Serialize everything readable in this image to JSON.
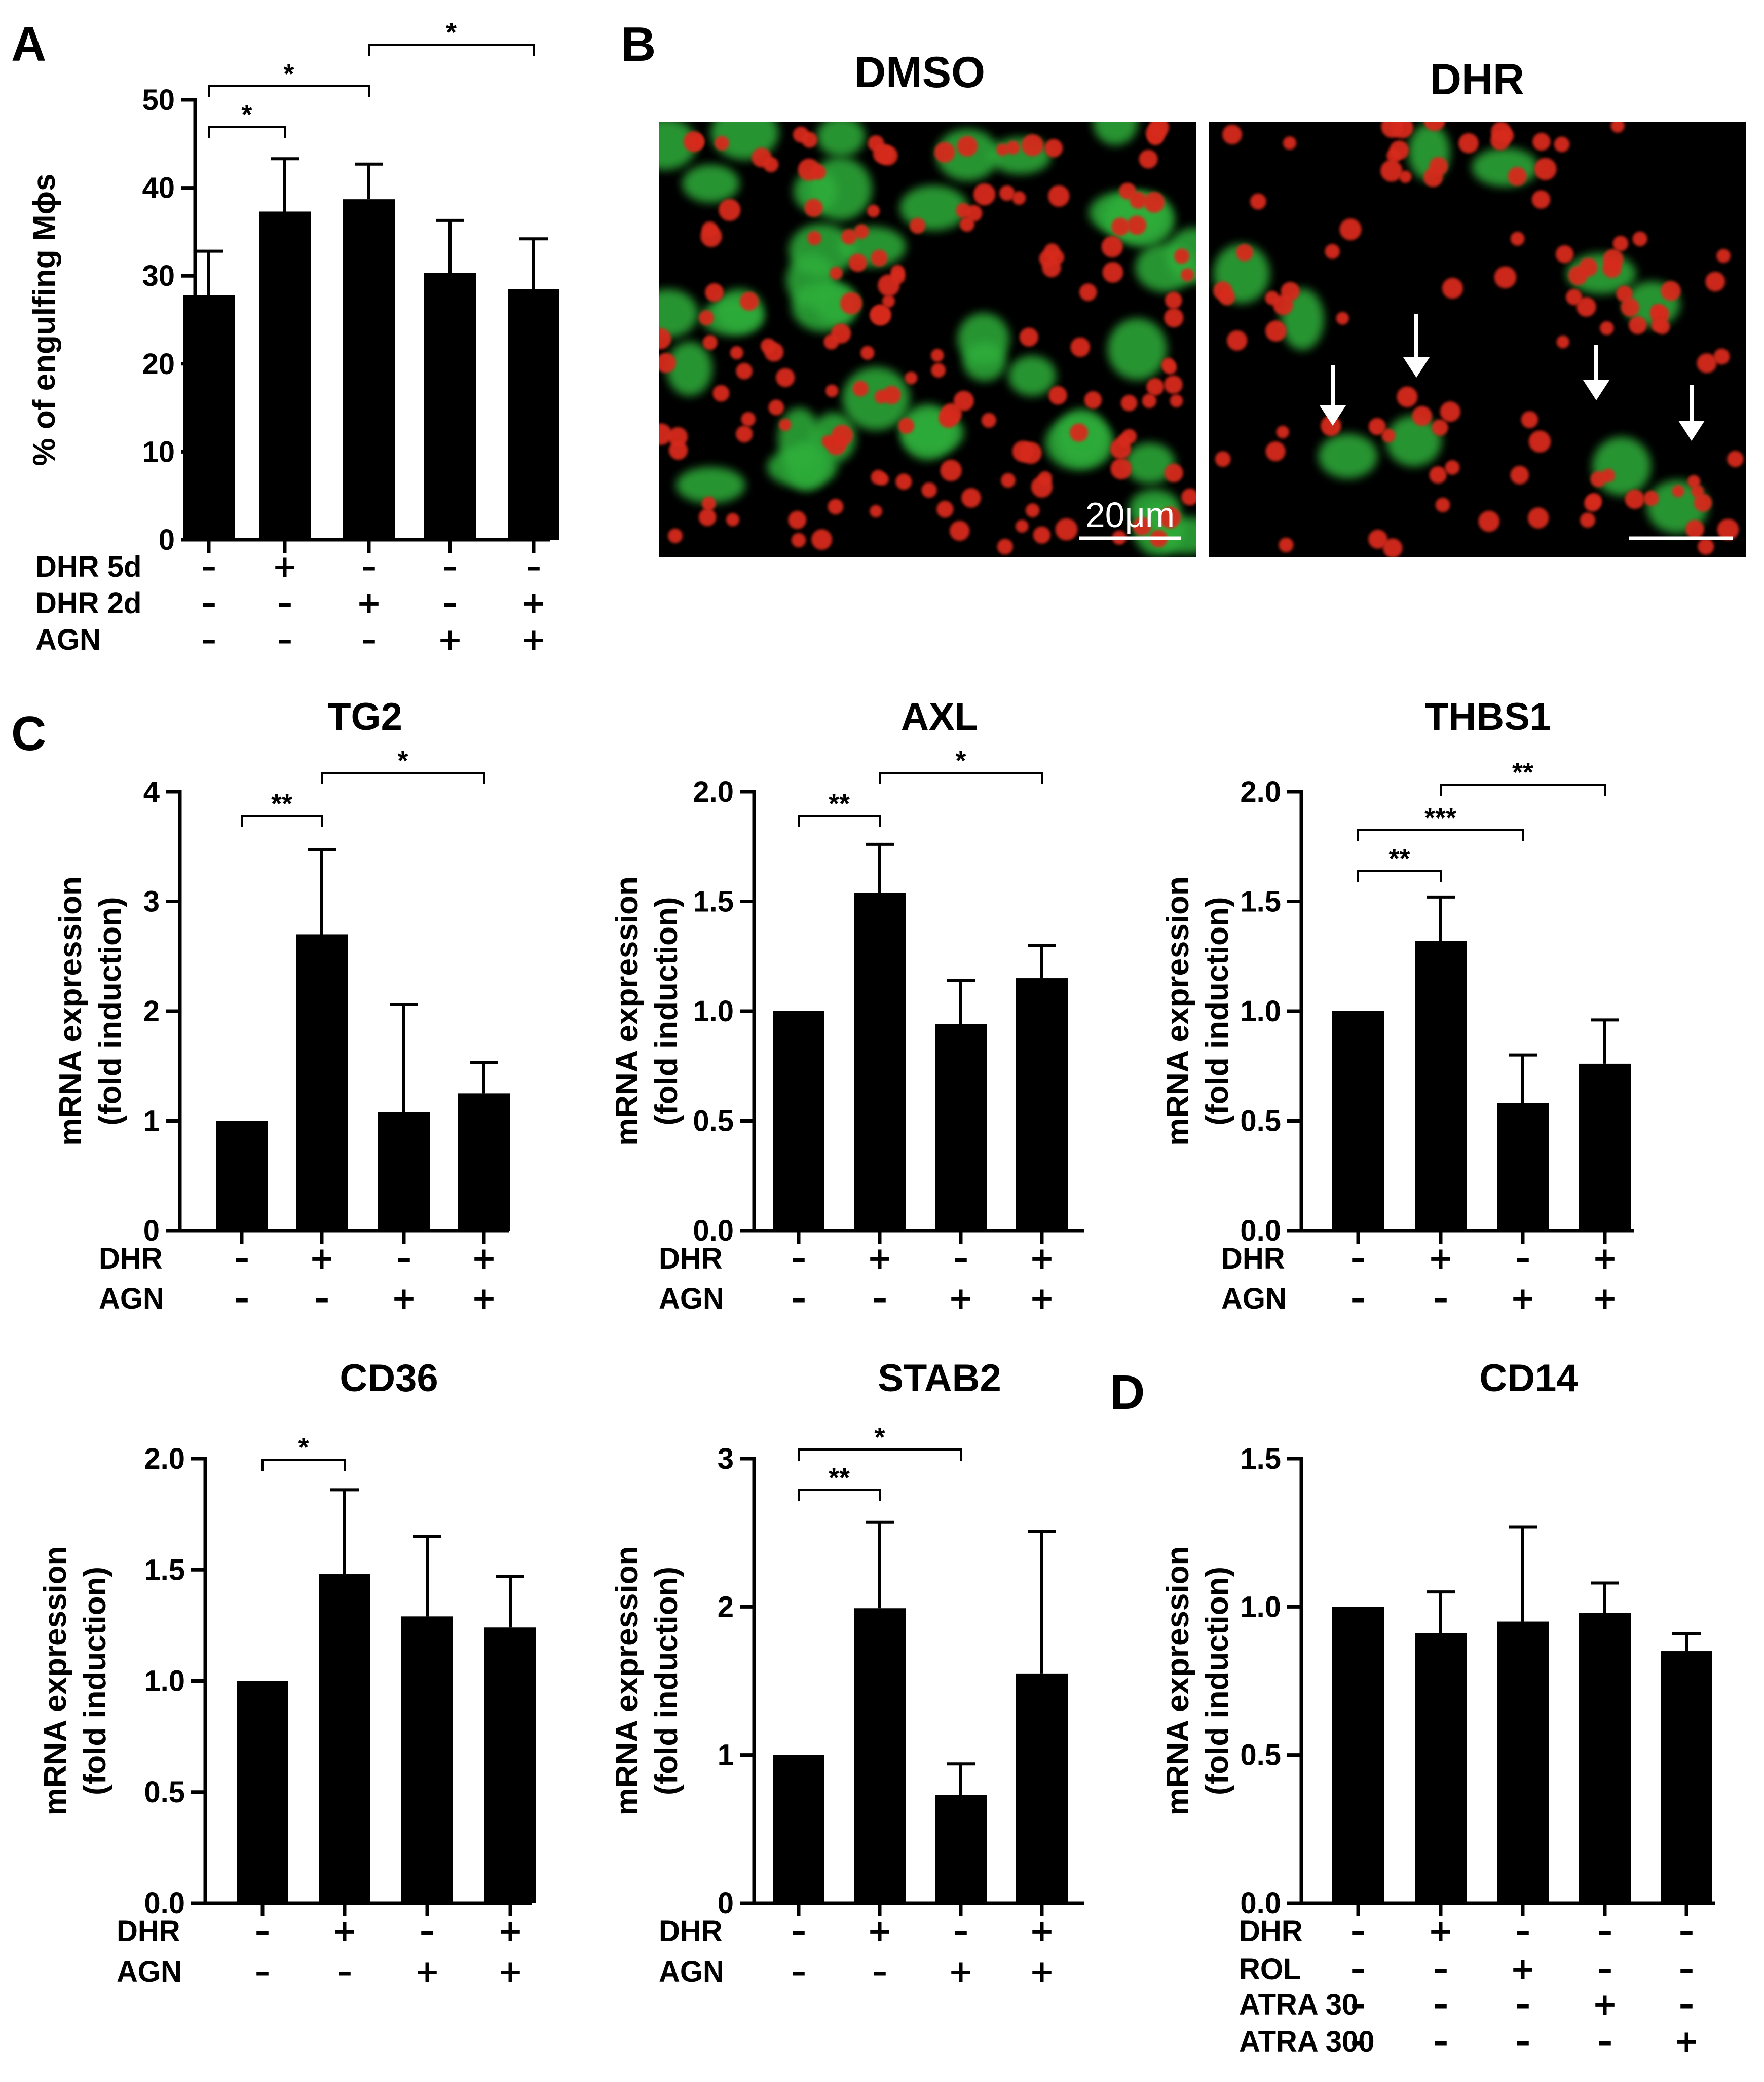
{
  "figure": {
    "panel_labels": [
      "A",
      "B",
      "C",
      "D"
    ],
    "micrographs": [
      {
        "label": "DMSO",
        "scale_bar_text": "20μm",
        "description_icon": "fluorescence-micrograph"
      },
      {
        "label": "DHR",
        "scale_bar_text": "",
        "description_icon": "fluorescence-micrograph-with-arrows"
      }
    ],
    "colors": {
      "bar": "#000000",
      "background": "#ffffff",
      "micrograph_bg": "#000000",
      "cell_green": "#2fae3b",
      "cell_red": "#d62a1c"
    }
  },
  "chart_data": [
    {
      "id": "A",
      "type": "bar",
      "title": "",
      "ylabel": "% of engulfing Mϕs",
      "ylim": [
        0,
        50
      ],
      "yticks": [
        "0",
        "10",
        "20",
        "30",
        "40",
        "50"
      ],
      "values": [
        27.8,
        37.3,
        38.7,
        30.3,
        28.5
      ],
      "errors": [
        5.0,
        6.0,
        4.0,
        6.0,
        5.7
      ],
      "conditions": [
        {
          "name": "DHR 5d",
          "marks": [
            "–",
            "+",
            "–",
            "–",
            "–"
          ]
        },
        {
          "name": "DHR 2d",
          "marks": [
            "–",
            "–",
            "+",
            "–",
            "+"
          ]
        },
        {
          "name": "AGN",
          "marks": [
            "–",
            "–",
            "–",
            "+",
            "+"
          ]
        }
      ],
      "significance": [
        {
          "from": 1,
          "to": 2,
          "label": "*"
        },
        {
          "from": 1,
          "to": 3,
          "label": "*"
        },
        {
          "from": 3,
          "to": 5,
          "label": "*"
        }
      ]
    },
    {
      "id": "TG2",
      "type": "bar",
      "title": "TG2",
      "ylabel": "mRNA expression\n(fold induction)",
      "ylim": [
        0,
        4
      ],
      "yticks": [
        "0",
        "1",
        "2",
        "3",
        "4"
      ],
      "values": [
        1.0,
        2.7,
        1.08,
        1.25
      ],
      "errors": [
        0,
        0.77,
        0.98,
        0.28
      ],
      "conditions": [
        {
          "name": "DHR",
          "marks": [
            "–",
            "+",
            "–",
            "+"
          ]
        },
        {
          "name": "AGN",
          "marks": [
            "–",
            "–",
            "+",
            "+"
          ]
        }
      ],
      "significance": [
        {
          "from": 1,
          "to": 2,
          "label": "**"
        },
        {
          "from": 2,
          "to": 4,
          "label": "*"
        }
      ]
    },
    {
      "id": "AXL",
      "type": "bar",
      "title": "AXL",
      "ylabel": "mRNA expression\n(fold induction)",
      "ylim": [
        0,
        2
      ],
      "yticks": [
        "0.0",
        "0.5",
        "1.0",
        "1.5",
        "2.0"
      ],
      "values": [
        1.0,
        1.54,
        0.94,
        1.15
      ],
      "errors": [
        0,
        0.22,
        0.2,
        0.15
      ],
      "conditions": [
        {
          "name": "DHR",
          "marks": [
            "–",
            "+",
            "–",
            "+"
          ]
        },
        {
          "name": "AGN",
          "marks": [
            "–",
            "–",
            "+",
            "+"
          ]
        }
      ],
      "significance": [
        {
          "from": 1,
          "to": 2,
          "label": "**"
        },
        {
          "from": 2,
          "to": 4,
          "label": "*"
        }
      ]
    },
    {
      "id": "THBS1",
      "type": "bar",
      "title": "THBS1",
      "ylabel": "mRNA expression\n(fold induction)",
      "ylim": [
        0,
        2
      ],
      "yticks": [
        "0.0",
        "0.5",
        "1.0",
        "1.5",
        "2.0"
      ],
      "values": [
        1.0,
        1.32,
        0.58,
        0.76
      ],
      "errors": [
        0,
        0.2,
        0.22,
        0.2
      ],
      "conditions": [
        {
          "name": "DHR",
          "marks": [
            "–",
            "+",
            "–",
            "+"
          ]
        },
        {
          "name": "AGN",
          "marks": [
            "–",
            "–",
            "+",
            "+"
          ]
        }
      ],
      "significance": [
        {
          "from": 1,
          "to": 2,
          "label": "**"
        },
        {
          "from": 1,
          "to": 3,
          "label": "***"
        },
        {
          "from": 2,
          "to": 4,
          "label": "**"
        }
      ]
    },
    {
      "id": "CD36",
      "type": "bar",
      "title": "CD36",
      "ylabel": "mRNA expression\n(fold induction)",
      "ylim": [
        0,
        2
      ],
      "yticks": [
        "0.0",
        "0.5",
        "1.0",
        "1.5",
        "2.0"
      ],
      "values": [
        1.0,
        1.48,
        1.29,
        1.24
      ],
      "errors": [
        0,
        0.38,
        0.36,
        0.23
      ],
      "conditions": [
        {
          "name": "DHR",
          "marks": [
            "–",
            "+",
            "–",
            "+"
          ]
        },
        {
          "name": "AGN",
          "marks": [
            "–",
            "–",
            "+",
            "+"
          ]
        }
      ],
      "significance": [
        {
          "from": 1,
          "to": 2,
          "label": "*"
        }
      ]
    },
    {
      "id": "STAB2",
      "type": "bar",
      "title": "STAB2",
      "ylabel": "mRNA expression\n(fold induction)",
      "ylim": [
        0,
        3
      ],
      "yticks": [
        "0",
        "1",
        "2",
        "3"
      ],
      "values": [
        1.0,
        1.99,
        0.73,
        1.55
      ],
      "errors": [
        0,
        0.58,
        0.21,
        0.96
      ],
      "conditions": [
        {
          "name": "DHR",
          "marks": [
            "–",
            "+",
            "–",
            "+"
          ]
        },
        {
          "name": "AGN",
          "marks": [
            "–",
            "–",
            "+",
            "+"
          ]
        }
      ],
      "significance": [
        {
          "from": 1,
          "to": 2,
          "label": "**"
        },
        {
          "from": 1,
          "to": 3,
          "label": "*"
        }
      ]
    },
    {
      "id": "CD14",
      "type": "bar",
      "title": "CD14",
      "ylabel": "mRNA expression\n(fold induction)",
      "ylim": [
        0,
        1.5
      ],
      "yticks": [
        "0.0",
        "0.5",
        "1.0",
        "1.5"
      ],
      "values": [
        1.0,
        0.91,
        0.95,
        0.98,
        0.85
      ],
      "errors": [
        0,
        0.14,
        0.32,
        0.1,
        0.06
      ],
      "conditions": [
        {
          "name": "DHR",
          "marks": [
            "–",
            "+",
            "–",
            "–",
            "–"
          ]
        },
        {
          "name": "ROL",
          "marks": [
            "–",
            "–",
            "+",
            "–",
            "–"
          ]
        },
        {
          "name": "ATRA 30",
          "marks": [
            "–",
            "–",
            "–",
            "+",
            "–"
          ]
        },
        {
          "name": "ATRA 300",
          "marks": [
            "–",
            "–",
            "–",
            "–",
            "+"
          ]
        }
      ],
      "significance": []
    }
  ]
}
